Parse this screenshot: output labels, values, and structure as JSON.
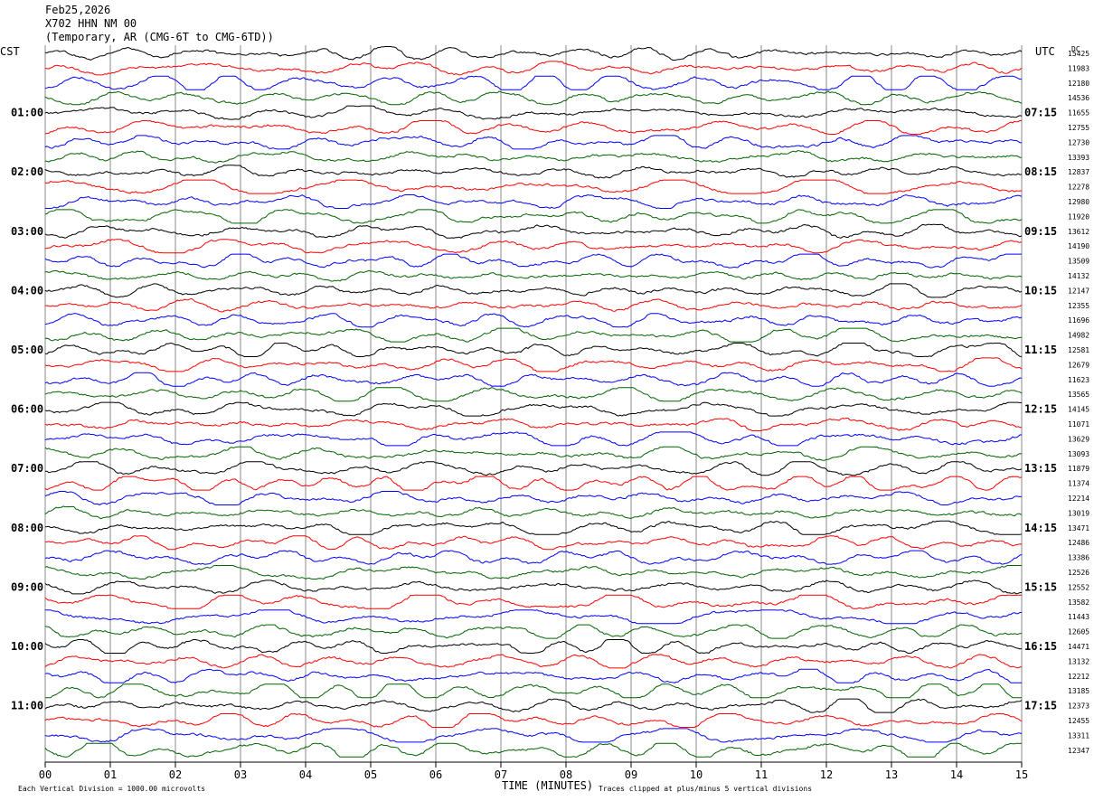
{
  "header": {
    "date": "Feb25,2026",
    "station": "X702 HHN NM 00",
    "network": "(Temporary, AR (CMG-6T to CMG-6TD))"
  },
  "chart_data": {
    "type": "line",
    "left_timezone": "CST",
    "right_timezone": "UTC",
    "dc_label": "DC",
    "trace_colors": [
      "#000000",
      "#ff0000",
      "#0000ff",
      "#006400"
    ],
    "left_hour_labels": [
      "01:00",
      "02:00",
      "03:00",
      "04:00",
      "05:00",
      "06:00",
      "07:00",
      "08:00",
      "09:00",
      "10:00",
      "11:00"
    ],
    "right_hour_labels": [
      "07:15",
      "08:15",
      "09:15",
      "10:15",
      "11:15",
      "12:15",
      "13:15",
      "14:15",
      "15:15",
      "16:15",
      "17:15"
    ],
    "dc_offsets": [
      "15425",
      "11983",
      "12180",
      "14536",
      "11655",
      "12755",
      "12730",
      "13393",
      "12837",
      "12278",
      "12980",
      "11920",
      "13612",
      "14190",
      "13509",
      "14132",
      "12147",
      "12355",
      "11696",
      "14982",
      "12581",
      "12679",
      "11623",
      "13565",
      "14145",
      "11071",
      "13629",
      "13093",
      "11879",
      "11374",
      "12214",
      "13019",
      "13471",
      "12486",
      "13386",
      "12526",
      "12552",
      "13582",
      "11443",
      "12605",
      "14471",
      "13132",
      "12212",
      "13185",
      "12373",
      "12455",
      "13311",
      "12347"
    ],
    "x_ticks": [
      "00",
      "01",
      "02",
      "03",
      "04",
      "05",
      "06",
      "07",
      "08",
      "09",
      "10",
      "11",
      "12",
      "13",
      "14",
      "15"
    ],
    "xlabel": "TIME (MINUTES)",
    "footer_left": "Each Vertical Division = 1000.00 microvolts",
    "footer_right": "Traces clipped at plus/minus 5 vertical divisions"
  }
}
